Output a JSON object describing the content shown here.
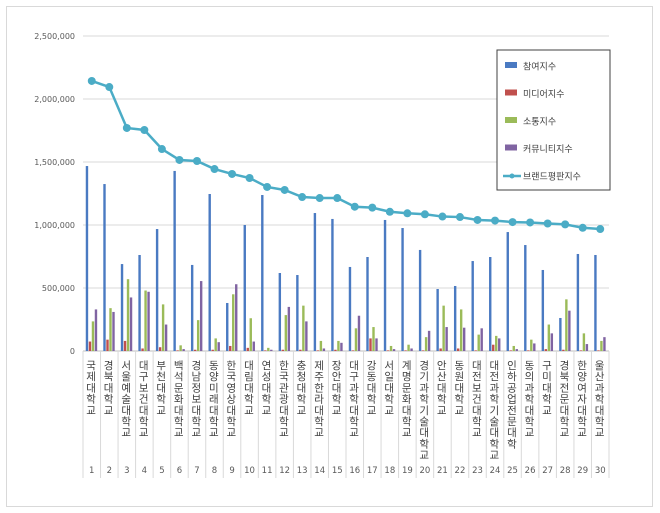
{
  "chart_data": {
    "type": "bar",
    "title": "",
    "xlabel": "",
    "ylabel": "",
    "ylim": [
      0,
      2500000
    ],
    "yticks": [
      "0",
      "500,000",
      "1,000,000",
      "1,500,000",
      "2,000,000",
      "2,500,000"
    ],
    "grid": true,
    "legend_position": "top-right",
    "categories": [
      "국제대학교",
      "경북대학교",
      "서울예술대학교",
      "대구보건대학교",
      "부천대학교",
      "백석문화대학교",
      "경남정보대학교",
      "동양미래대학교",
      "한국영상대학교",
      "대림대학교",
      "연성대학교",
      "한국관광대학교",
      "충청대학교",
      "제주한라대학교",
      "장안대학교",
      "대구과학대학교",
      "강동대학교",
      "서일대학교",
      "계명문화대학교",
      "경기과학기술대학교",
      "안산대학교",
      "동원대학교",
      "대전보건대학교",
      "대전과학기술대학교",
      "인하공업전문대학",
      "동의과학대학교",
      "구미대학교",
      "경북전문대학교",
      "한양여자대학교",
      "울산과학대학교"
    ],
    "ranks": [
      "1",
      "2",
      "3",
      "4",
      "5",
      "6",
      "7",
      "8",
      "9",
      "10",
      "11",
      "12",
      "13",
      "14",
      "15",
      "16",
      "17",
      "18",
      "19",
      "20",
      "21",
      "22",
      "23",
      "24",
      "25",
      "26",
      "27",
      "28",
      "29",
      "30"
    ],
    "series": [
      {
        "name": "참여지수",
        "kind": "bar",
        "color": "#4a7ac2",
        "values": [
          1468000,
          1325000,
          690000,
          762000,
          968000,
          1429000,
          683000,
          1246000,
          381000,
          1000000,
          1238000,
          619000,
          603000,
          1095000,
          1048000,
          667000,
          746000,
          1040000,
          976000,
          802000,
          492000,
          516000,
          714000,
          746000,
          944000,
          841000,
          643000,
          262000,
          770000,
          762000
        ]
      },
      {
        "name": "미디어지수",
        "kind": "bar",
        "color": "#c0504d",
        "values": [
          75000,
          90000,
          80000,
          20000,
          30000,
          5000,
          10000,
          10000,
          40000,
          25000,
          5000,
          10000,
          10000,
          5000,
          10000,
          5000,
          100000,
          5000,
          5000,
          5000,
          20000,
          20000,
          5000,
          50000,
          5000,
          5000,
          15000,
          10000,
          5000,
          5000
        ]
      },
      {
        "name": "소통지수",
        "kind": "bar",
        "color": "#9bbb59",
        "values": [
          235000,
          340000,
          570000,
          480000,
          370000,
          45000,
          245000,
          100000,
          450000,
          260000,
          25000,
          285000,
          360000,
          80000,
          80000,
          180000,
          190000,
          40000,
          50000,
          110000,
          360000,
          330000,
          130000,
          120000,
          40000,
          90000,
          210000,
          410000,
          140000,
          80000
        ]
      },
      {
        "name": "커뮤니티지수",
        "kind": "bar",
        "color": "#8064a2",
        "values": [
          330000,
          310000,
          425000,
          470000,
          210000,
          15000,
          555000,
          70000,
          530000,
          75000,
          10000,
          350000,
          235000,
          20000,
          65000,
          280000,
          100000,
          15000,
          20000,
          160000,
          190000,
          185000,
          180000,
          100000,
          15000,
          60000,
          140000,
          320000,
          55000,
          110000
        ]
      },
      {
        "name": "브랜드평판지수",
        "kind": "line",
        "color": "#4bacc6",
        "values": [
          2143000,
          2095000,
          1770000,
          1754000,
          1603000,
          1516000,
          1508000,
          1444000,
          1405000,
          1373000,
          1302000,
          1278000,
          1222000,
          1214000,
          1214000,
          1145000,
          1138000,
          1105000,
          1093000,
          1085000,
          1067000,
          1063000,
          1040000,
          1035000,
          1023000,
          1020000,
          1012000,
          1005000,
          978000,
          968000
        ]
      }
    ]
  }
}
